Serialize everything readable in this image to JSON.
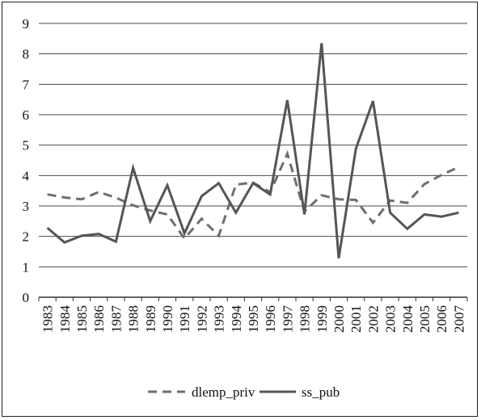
{
  "chart_data": {
    "type": "line",
    "categories": [
      "1983",
      "1984",
      "1985",
      "1986",
      "1987",
      "1988",
      "1989",
      "1990",
      "1991",
      "1992",
      "1993",
      "1994",
      "1995",
      "1996",
      "1997",
      "1998",
      "1999",
      "2000",
      "2001",
      "2002",
      "2003",
      "2004",
      "2005",
      "2006",
      "2007"
    ],
    "series": [
      {
        "name": "dlemp_priv",
        "style": "dashed",
        "color": "#6e6e6e",
        "values": [
          3.38,
          3.28,
          3.22,
          3.46,
          3.27,
          3.02,
          2.85,
          2.72,
          1.93,
          2.58,
          2.02,
          3.7,
          3.77,
          3.45,
          4.72,
          2.82,
          3.35,
          3.22,
          3.2,
          2.45,
          3.18,
          3.1,
          3.72,
          4.02,
          4.28
        ]
      },
      {
        "name": "ss_pub",
        "style": "solid",
        "color": "#555555",
        "values": [
          2.28,
          1.8,
          2.02,
          2.08,
          1.83,
          4.25,
          2.5,
          3.68,
          2.1,
          3.32,
          3.75,
          2.78,
          3.75,
          3.38,
          6.48,
          2.72,
          8.35,
          1.28,
          4.88,
          6.45,
          2.78,
          2.25,
          2.72,
          2.65,
          2.78
        ]
      }
    ],
    "ylim": [
      0,
      9
    ],
    "yticks": [
      "0",
      "1",
      "2",
      "3",
      "4",
      "5",
      "6",
      "7",
      "8",
      "9"
    ],
    "grid": "horizontal",
    "legend_position": "bottom"
  }
}
